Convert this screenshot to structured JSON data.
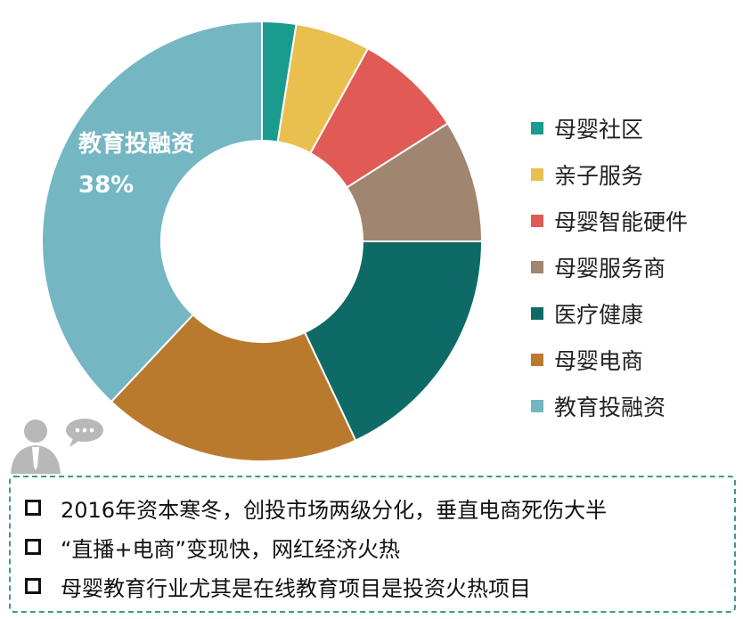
{
  "chart_data": {
    "type": "pie",
    "donut": true,
    "categories": [
      "母婴社区",
      "亲子服务",
      "母婴智能硬件",
      "母婴服务商",
      "医疗健康",
      "母婴电商",
      "教育投融资"
    ],
    "values": [
      2.5,
      5.5,
      8,
      9,
      18,
      19,
      38
    ],
    "colors": [
      "#1a9b8e",
      "#e9c04f",
      "#e05a56",
      "#a08670",
      "#0e6a66",
      "#b97a2e",
      "#74b7c3"
    ],
    "annotation": {
      "label": "教育投融资",
      "value": "38%"
    },
    "legend_position": "right"
  },
  "notes": [
    "2016年资本寒冬，创投市场两级分化，垂直电商死伤大半",
    "“直播+电商”变现快，网红经济火热",
    "母婴教育行业尤其是在线教育项目是投资火热项目"
  ],
  "icons": {
    "user": "user-avatar-icon",
    "chat": "speech-bubble-icon",
    "bullet": "checkbox-square-icon"
  }
}
